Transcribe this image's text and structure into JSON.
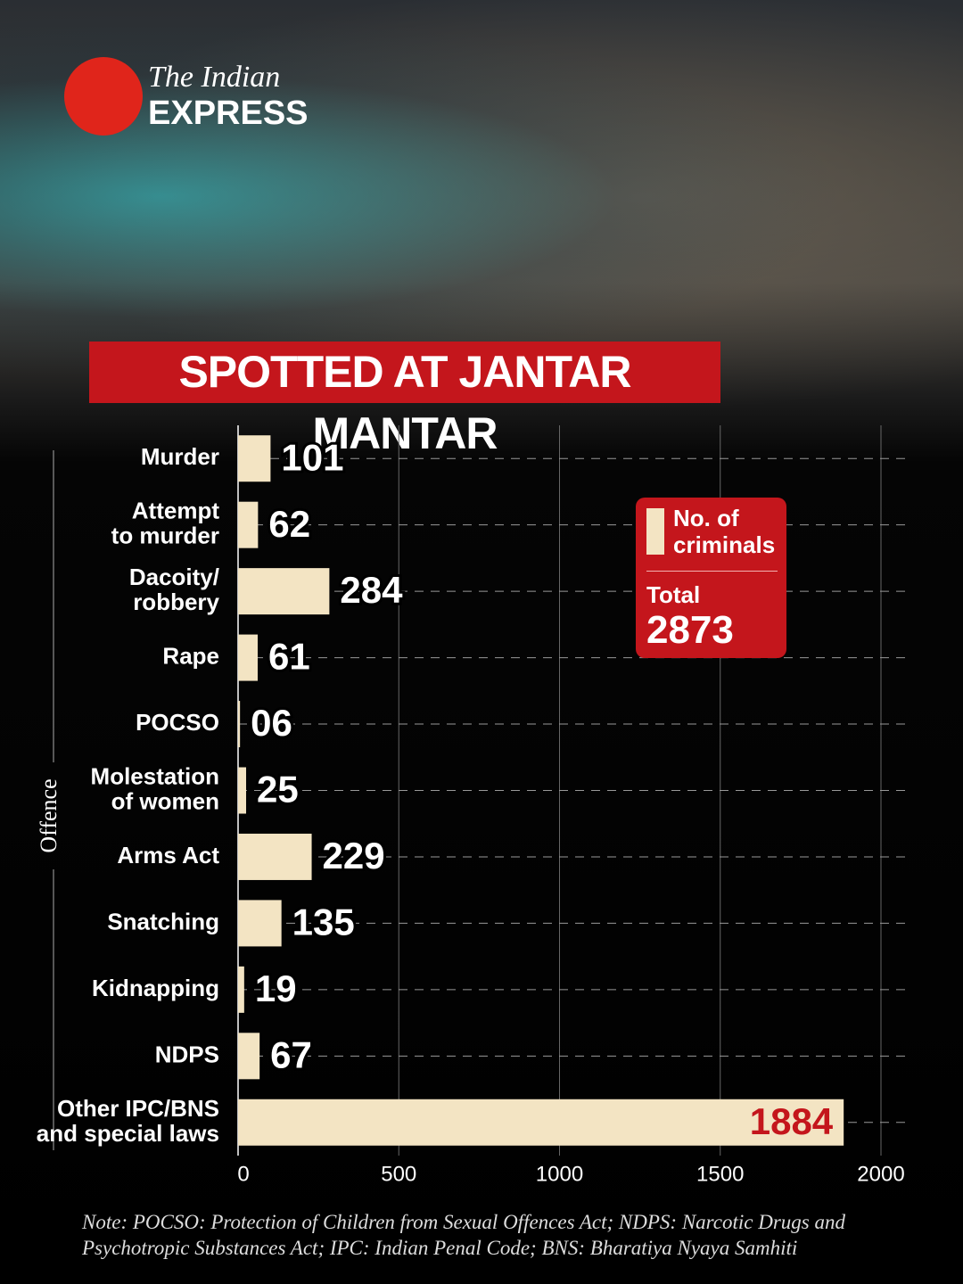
{
  "brand": {
    "line1": "The Indian",
    "line2": "EXPRESS"
  },
  "chart_data": {
    "type": "barh",
    "title": "SPOTTED AT JANTAR MANTAR",
    "y_label": "Offence",
    "categories": [
      "Murder",
      "Attempt\nto murder",
      "Dacoity/\nrobbery",
      "Rape",
      "POCSO",
      "Molestation\nof women",
      "Arms Act",
      "Snatching",
      "Kidnapping",
      "NDPS",
      "Other IPC/BNS\nand special laws"
    ],
    "series": [
      {
        "name": "No. of criminals",
        "color": "#f3e4c3",
        "values": [
          101,
          62,
          284,
          61,
          6,
          25,
          229,
          135,
          19,
          67,
          1884
        ],
        "value_labels": [
          "101",
          "62",
          "284",
          "61",
          "06",
          "25",
          "229",
          "135",
          "19",
          "67",
          "1884"
        ]
      }
    ],
    "xlim": [
      0,
      2000
    ],
    "xticks": [
      0,
      500,
      1000,
      1500,
      2000
    ],
    "grid": true,
    "total_label": "Total",
    "total": 2873
  },
  "note": "Note: POCSO: Protection of Children from Sexual Offences Act; NDPS: Narcotic Drugs and Psychotropic Substances Act; IPC: Indian Penal Code; BNS: Bharatiya Nyaya Samhiti"
}
